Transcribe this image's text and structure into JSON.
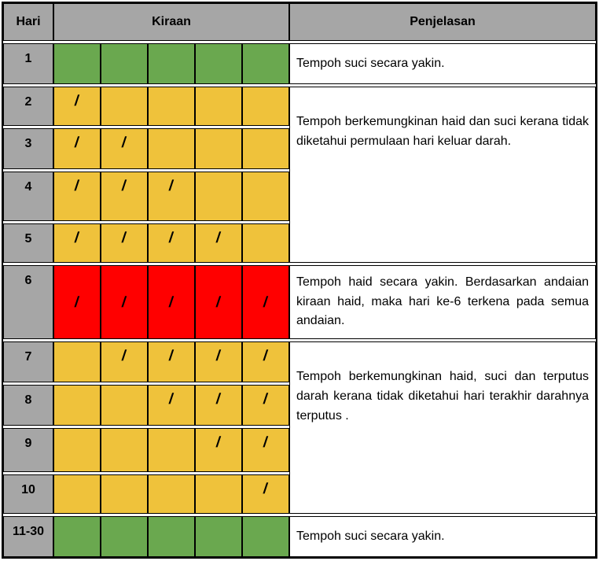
{
  "header": {
    "hari": "Hari",
    "kiraan": "Kiraan",
    "penjelasan": "Penjelasan"
  },
  "slash_symbol": "/",
  "colors": {
    "gray": "#a6a6a6",
    "green": "#6aa84f",
    "yellow": "#efc23b",
    "red": "#ff0000",
    "border": "#000000"
  },
  "rows": [
    {
      "day": "1",
      "color": "green",
      "marks": [
        0,
        0,
        0,
        0,
        0
      ]
    },
    {
      "day": "2",
      "color": "yellow",
      "marks": [
        1,
        0,
        0,
        0,
        0
      ]
    },
    {
      "day": "3",
      "color": "yellow",
      "marks": [
        1,
        1,
        0,
        0,
        0
      ]
    },
    {
      "day": "4",
      "color": "yellow",
      "marks": [
        1,
        1,
        1,
        0,
        0
      ]
    },
    {
      "day": "5",
      "color": "yellow",
      "marks": [
        1,
        1,
        1,
        1,
        0
      ]
    },
    {
      "day": "6",
      "color": "red",
      "marks": [
        1,
        1,
        1,
        1,
        1
      ]
    },
    {
      "day": "7",
      "color": "yellow",
      "marks": [
        0,
        1,
        1,
        1,
        1
      ]
    },
    {
      "day": "8",
      "color": "yellow",
      "marks": [
        0,
        0,
        1,
        1,
        1
      ]
    },
    {
      "day": "9",
      "color": "yellow",
      "marks": [
        0,
        0,
        0,
        1,
        1
      ]
    },
    {
      "day": "10",
      "color": "yellow",
      "marks": [
        0,
        0,
        0,
        0,
        1
      ]
    },
    {
      "day": "11-30",
      "color": "green",
      "marks": [
        0,
        0,
        0,
        0,
        0
      ]
    }
  ],
  "explanations": [
    {
      "text": "Tempoh suci secara yakin.",
      "rowStart": 1,
      "rowSpan": 1,
      "justify": false
    },
    {
      "text": "Tempoh berkemungkinan haid dan suci kerana tidak diketahui permulaan hari keluar darah.",
      "rowStart": 2,
      "rowSpan": 4,
      "justify": true
    },
    {
      "text": "Tempoh haid secara yakin. Berdasarkan andaian kiraan haid, maka hari ke-6 terkena pada semua andaian.",
      "rowStart": 6,
      "rowSpan": 1,
      "justify": true
    },
    {
      "text": "Tempoh berkemungkinan haid, suci dan terputus darah kerana tidak diketahui hari terakhir darahnya terputus .",
      "rowStart": 7,
      "rowSpan": 4,
      "justify": true
    },
    {
      "text": "Tempoh suci secara yakin.",
      "rowStart": 11,
      "rowSpan": 1,
      "justify": false
    }
  ]
}
